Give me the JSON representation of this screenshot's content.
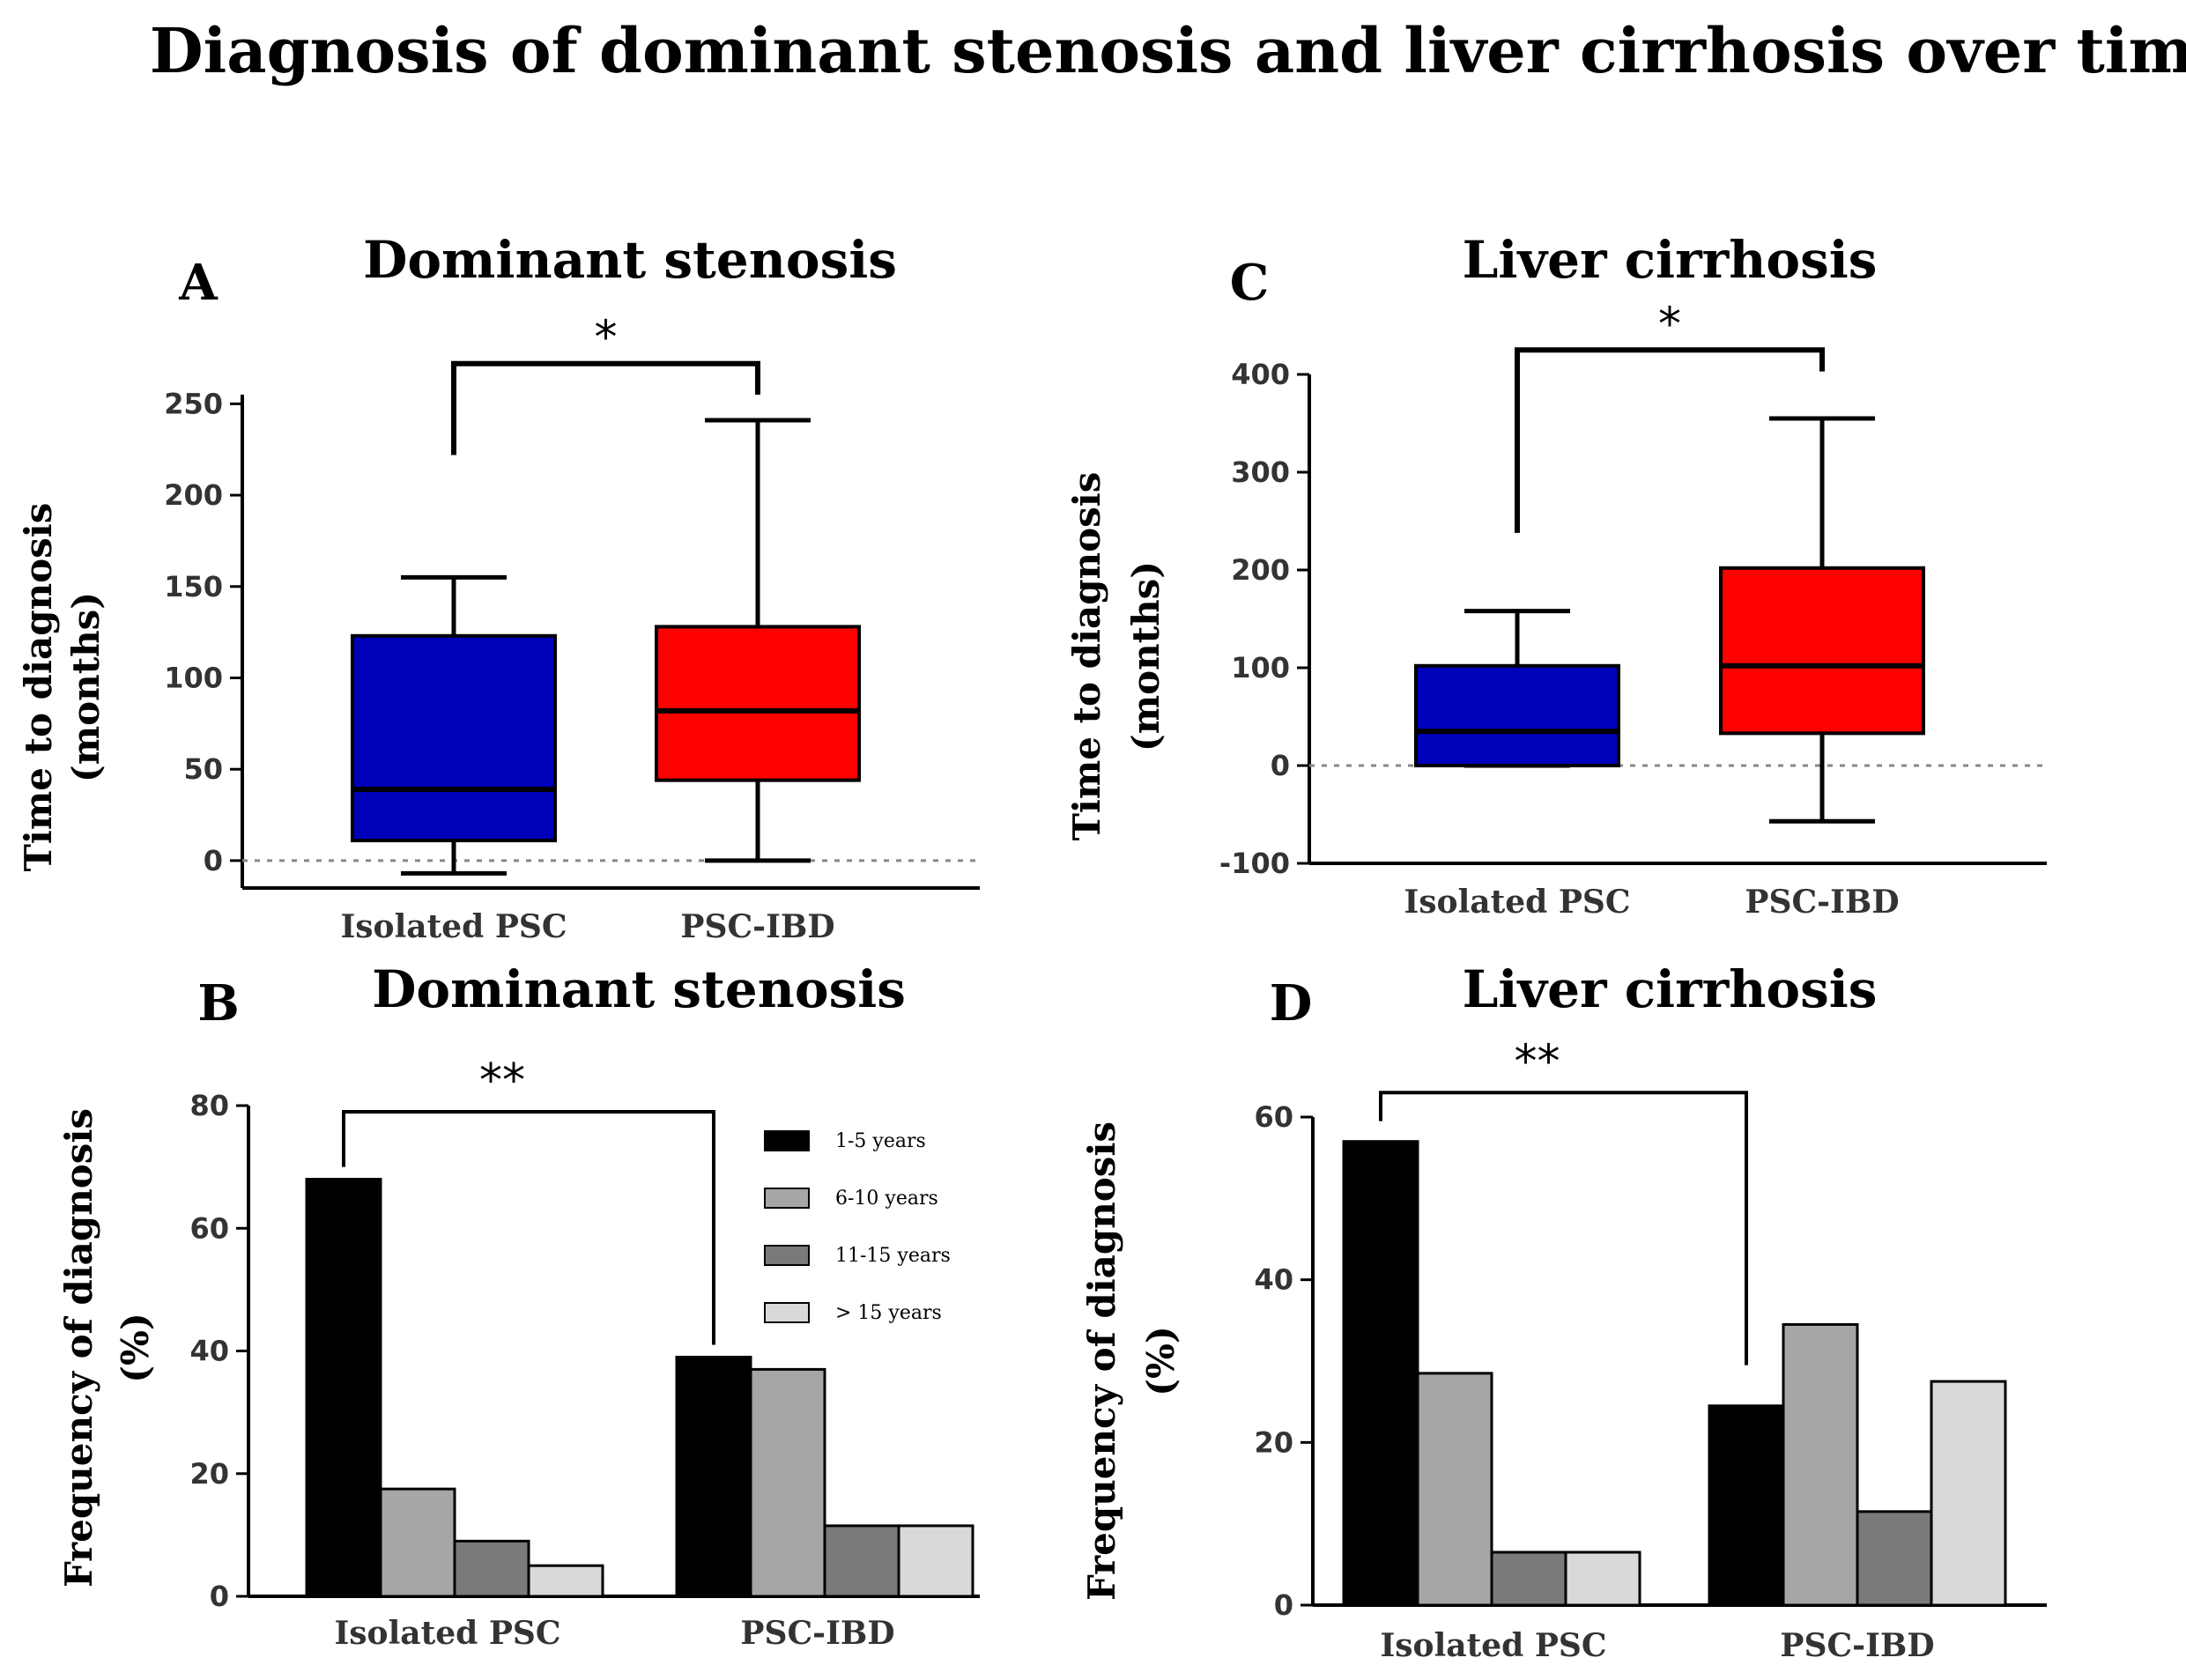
{
  "figure": {
    "title": "Diagnosis of dominant stenosis and liver cirrhosis over time"
  },
  "chart_data": [
    {
      "panel": "A",
      "type": "box",
      "title": "Dominant stenosis",
      "ylabel_line1": "Time to diagnosis",
      "ylabel_line2": "(months)",
      "ylim": [
        -15,
        255
      ],
      "yticks": [
        0,
        50,
        100,
        150,
        200,
        250
      ],
      "categories": [
        "Isolated PSC",
        "PSC-IBD"
      ],
      "boxes": [
        {
          "min": -7,
          "q1": 11,
          "median": 39,
          "q3": 123,
          "max": 155,
          "color": "#0000bb"
        },
        {
          "min": 0,
          "q1": 44,
          "median": 82,
          "q3": 128,
          "max": 241,
          "color": "#ff0000"
        }
      ],
      "significance": "*",
      "bracket_y": 272,
      "bracket_left_end": 222,
      "bracket_right_end": 255,
      "zero_line": true
    },
    {
      "panel": "B",
      "type": "bar",
      "title": "Dominant stenosis",
      "ylabel_line1": "Frequency of diagnosis",
      "ylabel_line2": "(%)",
      "ylim": [
        0,
        80
      ],
      "yticks": [
        0,
        20,
        40,
        60,
        80
      ],
      "categories": [
        "Isolated PSC",
        "PSC-IBD"
      ],
      "series": [
        {
          "name": "1-5 years",
          "color": "#000000",
          "values": [
            68,
            39
          ]
        },
        {
          "name": "6-10 years",
          "color": "#a6a6a6",
          "values": [
            17.5,
            37
          ]
        },
        {
          "name": "11-15 years",
          "color": "#7a7a7a",
          "values": [
            9,
            11.5
          ]
        },
        {
          "name": "> 15 years",
          "color": "#d9d9d9",
          "values": [
            5,
            11.5
          ]
        }
      ],
      "significance": "**",
      "bracket_y": 79,
      "bracket_left_end": 70,
      "bracket_right_end": 41,
      "legend": "top-right"
    },
    {
      "panel": "C",
      "type": "box",
      "title": "Liver cirrhosis",
      "ylabel_line1": "Time to diagnosis",
      "ylabel_line2": "(months)",
      "ylim": [
        -100,
        400
      ],
      "yticks": [
        -100,
        0,
        100,
        200,
        300,
        400
      ],
      "categories": [
        "Isolated PSC",
        "PSC-IBD"
      ],
      "boxes": [
        {
          "min": 0,
          "q1": 0,
          "median": 35,
          "q3": 102,
          "max": 158,
          "color": "#0000bb"
        },
        {
          "min": -57,
          "q1": 33,
          "median": 102,
          "q3": 202,
          "max": 355,
          "color": "#ff0000"
        }
      ],
      "significance": "*",
      "bracket_y": 425,
      "bracket_left_end": 238,
      "bracket_right_end": 403,
      "zero_line": true
    },
    {
      "panel": "D",
      "type": "bar",
      "title": "Liver cirrhosis",
      "ylabel_line1": "Frequency of diagnosis",
      "ylabel_line2": "(%)",
      "ylim": [
        0,
        60
      ],
      "yticks": [
        0,
        20,
        40,
        60
      ],
      "categories": [
        "Isolated PSC",
        "PSC-IBD"
      ],
      "series": [
        {
          "name": "1-5 years",
          "color": "#000000",
          "values": [
            57,
            24.5
          ]
        },
        {
          "name": "6-10 years",
          "color": "#a6a6a6",
          "values": [
            28.5,
            34.5
          ]
        },
        {
          "name": "11-15 years",
          "color": "#7a7a7a",
          "values": [
            6.5,
            11.5
          ]
        },
        {
          "name": "> 15 years",
          "color": "#d9d9d9",
          "values": [
            6.5,
            27.5
          ]
        }
      ],
      "significance": "**",
      "bracket_y": 63,
      "bracket_left_end": 59.5,
      "bracket_right_end": 29.5
    }
  ]
}
